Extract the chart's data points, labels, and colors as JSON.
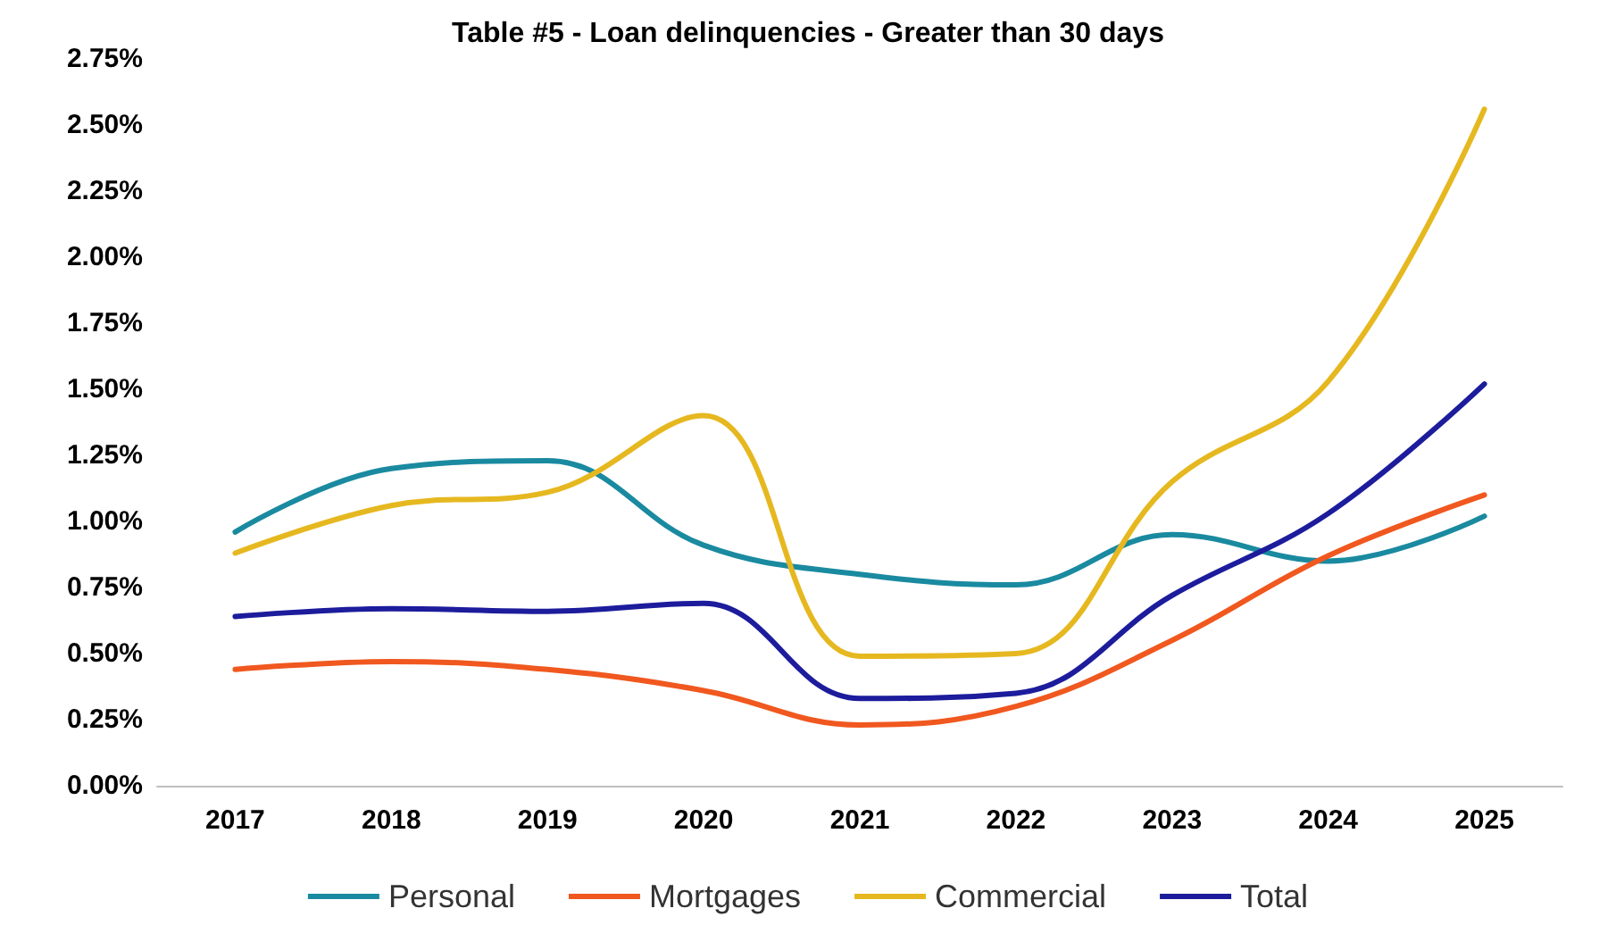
{
  "chart_data": {
    "type": "line",
    "title": "Table #5 - Loan delinquencies - Greater than 30 days",
    "categories": [
      "2017",
      "2018",
      "2019",
      "2020",
      "2021",
      "2022",
      "2023",
      "2024",
      "2025"
    ],
    "series": [
      {
        "name": "Personal",
        "color": "#1a8aa0",
        "values": [
          0.96,
          1.2,
          1.23,
          0.91,
          0.8,
          0.76,
          0.95,
          0.85,
          1.02
        ]
      },
      {
        "name": "Mortgages",
        "color": "#f0581f",
        "values": [
          0.44,
          0.47,
          0.44,
          0.36,
          0.23,
          0.3,
          0.55,
          0.87,
          1.1
        ]
      },
      {
        "name": "Commercial",
        "color": "#e6b820",
        "values": [
          0.88,
          1.06,
          1.11,
          1.4,
          0.49,
          0.5,
          1.15,
          1.53,
          2.56
        ]
      },
      {
        "name": "Total",
        "color": "#1c1c9c",
        "values": [
          0.64,
          0.67,
          0.66,
          0.69,
          0.33,
          0.35,
          0.72,
          1.03,
          1.52
        ]
      }
    ],
    "ylim": [
      0,
      2.75
    ],
    "yticks": [
      {
        "value": 0,
        "label": "0.00%"
      },
      {
        "value": 0.25,
        "label": "0.25%"
      },
      {
        "value": 0.5,
        "label": "0.50%"
      },
      {
        "value": 0.75,
        "label": "0.75%"
      },
      {
        "value": 1,
        "label": "1.00%"
      },
      {
        "value": 1.25,
        "label": "1.25%"
      },
      {
        "value": 1.5,
        "label": "1.50%"
      },
      {
        "value": 1.75,
        "label": "1.75%"
      },
      {
        "value": 2,
        "label": "2.00%"
      },
      {
        "value": 2.25,
        "label": "2.25%"
      },
      {
        "value": 2.5,
        "label": "2.50%"
      },
      {
        "value": 2.75,
        "label": "2.75%"
      }
    ],
    "grid": false,
    "legend": "bottom",
    "marker": "none",
    "line_style": "solid"
  }
}
